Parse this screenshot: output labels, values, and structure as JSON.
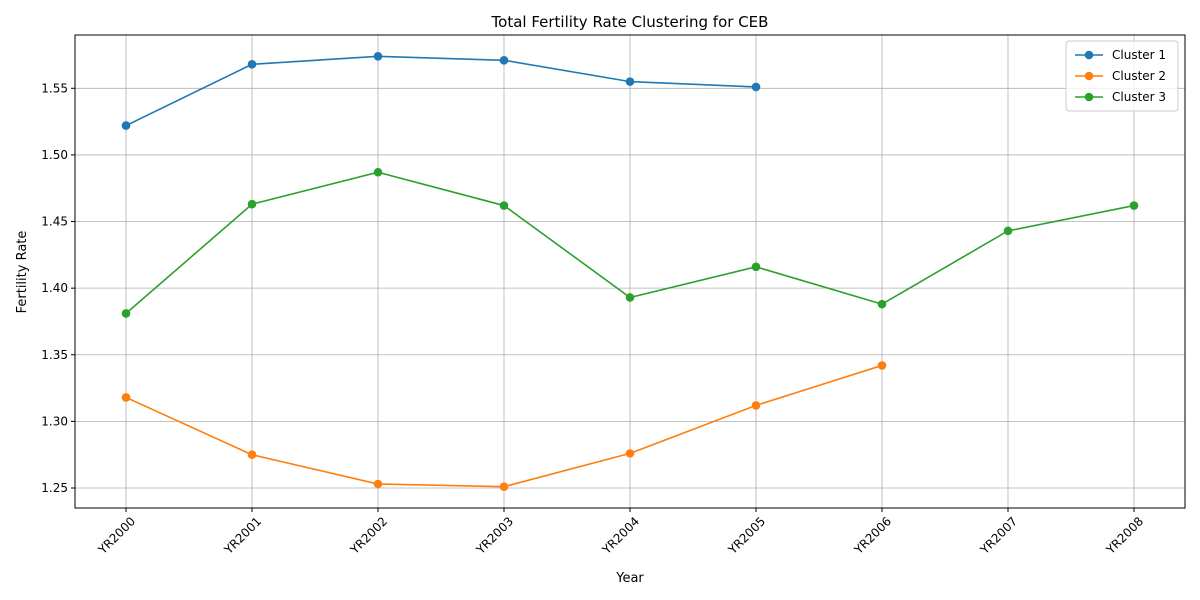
{
  "chart_data": {
    "type": "line",
    "title": "Total Fertility Rate Clustering for CEB",
    "xlabel": "Year",
    "ylabel": "Fertility Rate",
    "categories": [
      "YR2000",
      "YR2001",
      "YR2002",
      "YR2003",
      "YR2004",
      "YR2005",
      "YR2006",
      "YR2007",
      "YR2008"
    ],
    "y_ticks": [
      "1.25",
      "1.30",
      "1.35",
      "1.40",
      "1.45",
      "1.50",
      "1.55"
    ],
    "ylim": [
      1.235,
      1.59
    ],
    "grid": true,
    "legend_position": "top-right",
    "series": [
      {
        "name": "Cluster 1",
        "color": "#1f77b4",
        "values": [
          1.522,
          1.568,
          1.574,
          1.571,
          1.555,
          1.551,
          null,
          null,
          null
        ]
      },
      {
        "name": "Cluster 2",
        "color": "#ff7f0e",
        "values": [
          1.318,
          1.275,
          1.253,
          1.251,
          1.276,
          1.312,
          1.342,
          null,
          null
        ]
      },
      {
        "name": "Cluster 3",
        "color": "#2ca02c",
        "values": [
          1.381,
          1.463,
          1.487,
          1.462,
          1.393,
          1.416,
          1.388,
          1.443,
          1.462
        ]
      }
    ]
  }
}
